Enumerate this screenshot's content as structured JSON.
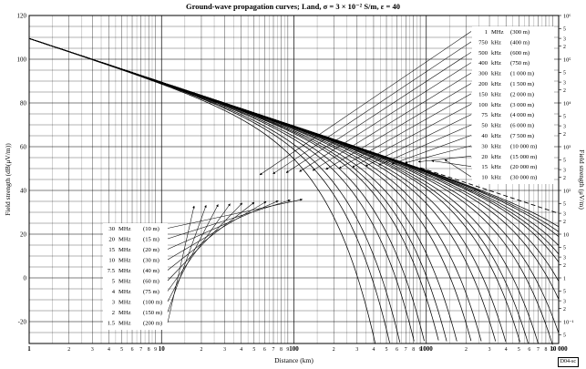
{
  "chart_data": {
    "type": "line",
    "title": "Ground-wave propagation curves; Land, σ = 3 × 10⁻² S/m, ε = 40",
    "xlabel": "Distance (km)",
    "ylabel": "Field strength (dB(μV/m))",
    "y2label": "Field strength (μV/m)",
    "x_scale": "log",
    "xlim": [
      1,
      10000
    ],
    "ylim": [
      -30,
      120
    ],
    "x_tick_labels": [
      {
        "value": 1,
        "label": "1"
      },
      {
        "value": 2,
        "label": "2"
      },
      {
        "value": 3,
        "label": "3"
      },
      {
        "value": 4,
        "label": "4"
      },
      {
        "value": 5,
        "label": "5"
      },
      {
        "value": 6,
        "label": "6"
      },
      {
        "value": 7,
        "label": "7"
      },
      {
        "value": 8,
        "label": "8"
      },
      {
        "value": 9,
        "label": "9"
      },
      {
        "value": 10,
        "label": "10"
      },
      {
        "value": 20,
        "label": "2"
      },
      {
        "value": 30,
        "label": "3"
      },
      {
        "value": 40,
        "label": "4"
      },
      {
        "value": 50,
        "label": "5"
      },
      {
        "value": 60,
        "label": "6"
      },
      {
        "value": 70,
        "label": "7"
      },
      {
        "value": 80,
        "label": "8"
      },
      {
        "value": 90,
        "label": "9"
      },
      {
        "value": 100,
        "label": "100"
      },
      {
        "value": 200,
        "label": "2"
      },
      {
        "value": 300,
        "label": "3"
      },
      {
        "value": 400,
        "label": "4"
      },
      {
        "value": 500,
        "label": "5"
      },
      {
        "value": 600,
        "label": "6"
      },
      {
        "value": 700,
        "label": "7"
      },
      {
        "value": 800,
        "label": "8"
      },
      {
        "value": 900,
        "label": "9"
      },
      {
        "value": 1000,
        "label": "1000"
      },
      {
        "value": 2000,
        "label": "2"
      },
      {
        "value": 3000,
        "label": "3"
      },
      {
        "value": 4000,
        "label": "4"
      },
      {
        "value": 5000,
        "label": "5"
      },
      {
        "value": 6000,
        "label": "6"
      },
      {
        "value": 7000,
        "label": "7"
      },
      {
        "value": 8000,
        "label": "8"
      },
      {
        "value": 9000,
        "label": "9"
      },
      {
        "value": 10000,
        "label": "10 000"
      }
    ],
    "y_ticks": [
      -20,
      0,
      20,
      40,
      60,
      80,
      100,
      120
    ],
    "right_axis_ticks": [
      {
        "db": 120,
        "label": "10⁶"
      },
      {
        "db": 113.98,
        "label": "5"
      },
      {
        "db": 109.54,
        "label": "3"
      },
      {
        "db": 106.02,
        "label": "2"
      },
      {
        "db": 100,
        "label": "10⁵"
      },
      {
        "db": 93.98,
        "label": "5"
      },
      {
        "db": 89.54,
        "label": "3"
      },
      {
        "db": 86.02,
        "label": "2"
      },
      {
        "db": 80,
        "label": "10⁴"
      },
      {
        "db": 73.98,
        "label": "5"
      },
      {
        "db": 69.54,
        "label": "3"
      },
      {
        "db": 66.02,
        "label": "2"
      },
      {
        "db": 60,
        "label": "10³"
      },
      {
        "db": 53.98,
        "label": "5"
      },
      {
        "db": 49.54,
        "label": "3"
      },
      {
        "db": 46.02,
        "label": "2"
      },
      {
        "db": 40,
        "label": "10²"
      },
      {
        "db": 33.98,
        "label": "5"
      },
      {
        "db": 29.54,
        "label": "3"
      },
      {
        "db": 26.02,
        "label": "2"
      },
      {
        "db": 20,
        "label": "10"
      },
      {
        "db": 13.98,
        "label": "5"
      },
      {
        "db": 9.54,
        "label": "3"
      },
      {
        "db": 6.02,
        "label": "2"
      },
      {
        "db": 0,
        "label": "1"
      },
      {
        "db": -6.02,
        "label": "5"
      },
      {
        "db": -10.46,
        "label": "3"
      },
      {
        "db": -13.98,
        "label": "2"
      },
      {
        "db": -20,
        "label": "10⁻¹"
      },
      {
        "db": -26.02,
        "label": "5"
      }
    ],
    "grid": true,
    "legend_upper": [
      {
        "freq": "1",
        "unit": "MHz",
        "wavelength": "(300 m)"
      },
      {
        "freq": "750",
        "unit": "kHz",
        "wavelength": "(400 m)"
      },
      {
        "freq": "500",
        "unit": "kHz",
        "wavelength": "(600 m)"
      },
      {
        "freq": "400",
        "unit": "kHz",
        "wavelength": "(750 m)"
      },
      {
        "freq": "300",
        "unit": "kHz",
        "wavelength": "(1 000 m)"
      },
      {
        "freq": "200",
        "unit": "kHz",
        "wavelength": "(1 500 m)"
      },
      {
        "freq": "150",
        "unit": "kHz",
        "wavelength": "(2 000 m)"
      },
      {
        "freq": "100",
        "unit": "kHz",
        "wavelength": "(3 000 m)"
      },
      {
        "freq": "75",
        "unit": "kHz",
        "wavelength": "(4 000 m)"
      },
      {
        "freq": "50",
        "unit": "kHz",
        "wavelength": "(6 000 m)"
      },
      {
        "freq": "40",
        "unit": "kHz",
        "wavelength": "(7 500 m)"
      },
      {
        "freq": "30",
        "unit": "kHz",
        "wavelength": "(10 000 m)"
      },
      {
        "freq": "20",
        "unit": "kHz",
        "wavelength": "(15 000 m)"
      },
      {
        "freq": "15",
        "unit": "kHz",
        "wavelength": "(20 000 m)"
      },
      {
        "freq": "10",
        "unit": "kHz",
        "wavelength": "(30 000 m)"
      }
    ],
    "legend_lower": [
      {
        "freq": "30",
        "unit": "MHz",
        "wavelength": "(10 m)"
      },
      {
        "freq": "20",
        "unit": "MHz",
        "wavelength": "(15 m)"
      },
      {
        "freq": "15",
        "unit": "MHz",
        "wavelength": "(20 m)"
      },
      {
        "freq": "10",
        "unit": "MHz",
        "wavelength": "(30 m)"
      },
      {
        "freq": "7.5",
        "unit": "MHz",
        "wavelength": "(40 m)"
      },
      {
        "freq": "5",
        "unit": "MHz",
        "wavelength": "(60 m)"
      },
      {
        "freq": "4",
        "unit": "MHz",
        "wavelength": "(75 m)"
      },
      {
        "freq": "3",
        "unit": "MHz",
        "wavelength": "(100 m)"
      },
      {
        "freq": "2",
        "unit": "MHz",
        "wavelength": "(150 m)"
      },
      {
        "freq": "1.5",
        "unit": "MHz",
        "wavelength": "(200 m)"
      }
    ],
    "inverse_distance_line": {
      "x": [
        1,
        10000
      ],
      "y": [
        109.5,
        29.5
      ]
    },
    "curves_mhz": [
      0.01,
      0.015,
      0.02,
      0.03,
      0.04,
      0.05,
      0.075,
      0.1,
      0.15,
      0.2,
      0.3,
      0.4,
      0.5,
      0.75,
      1,
      1.5,
      2,
      3,
      4,
      5,
      7.5,
      10,
      15,
      20,
      30
    ]
  },
  "figure_tag": "D04-sc"
}
